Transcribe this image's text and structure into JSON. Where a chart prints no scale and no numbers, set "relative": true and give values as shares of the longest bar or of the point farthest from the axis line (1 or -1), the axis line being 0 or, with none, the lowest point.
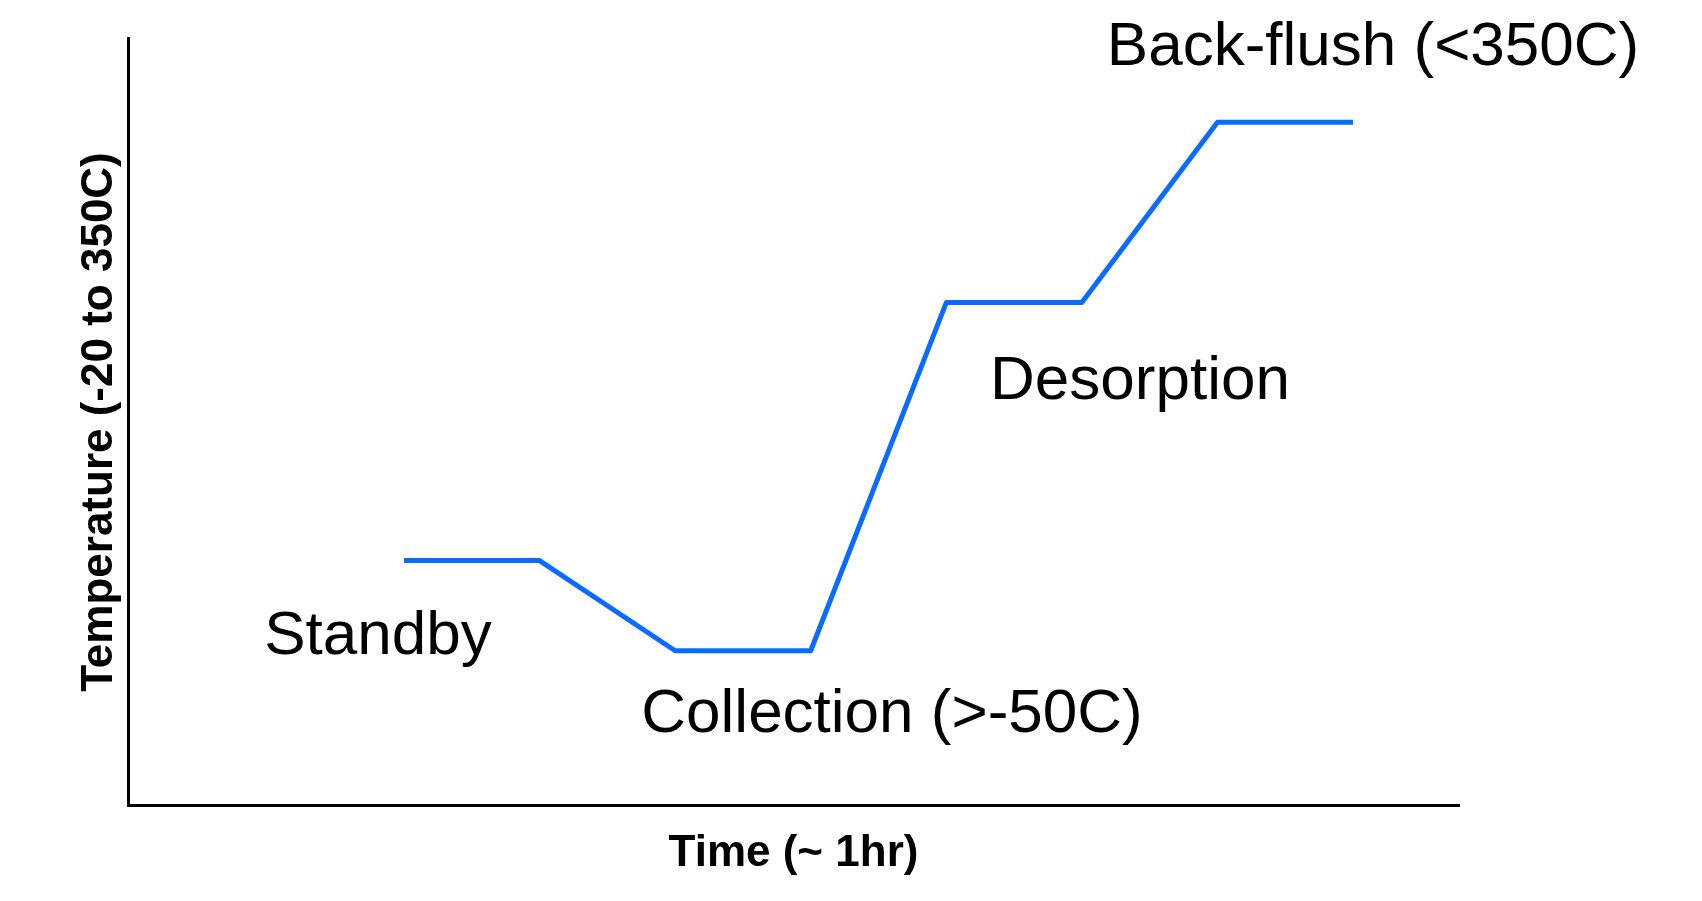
{
  "chart_data": {
    "type": "line",
    "relative": true,
    "xlabel": "Time (~ 1hr)",
    "ylabel": "Temperature (-20 to 350C)",
    "categories": [
      null,
      null,
      null,
      null,
      null,
      null,
      null,
      null
    ],
    "series": [
      {
        "color": "#0a6cff",
        "values": [
          0.358,
          0.358,
          0.226,
          0.226,
          0.736,
          0.736,
          1,
          1
        ]
      }
    ],
    "annotations": [
      "Back-flush (<350C)",
      "Desorption",
      "Standby",
      "Collection (>-50C)"
    ],
    "grid": false,
    "marker": "none",
    "line_style": "solid"
  }
}
